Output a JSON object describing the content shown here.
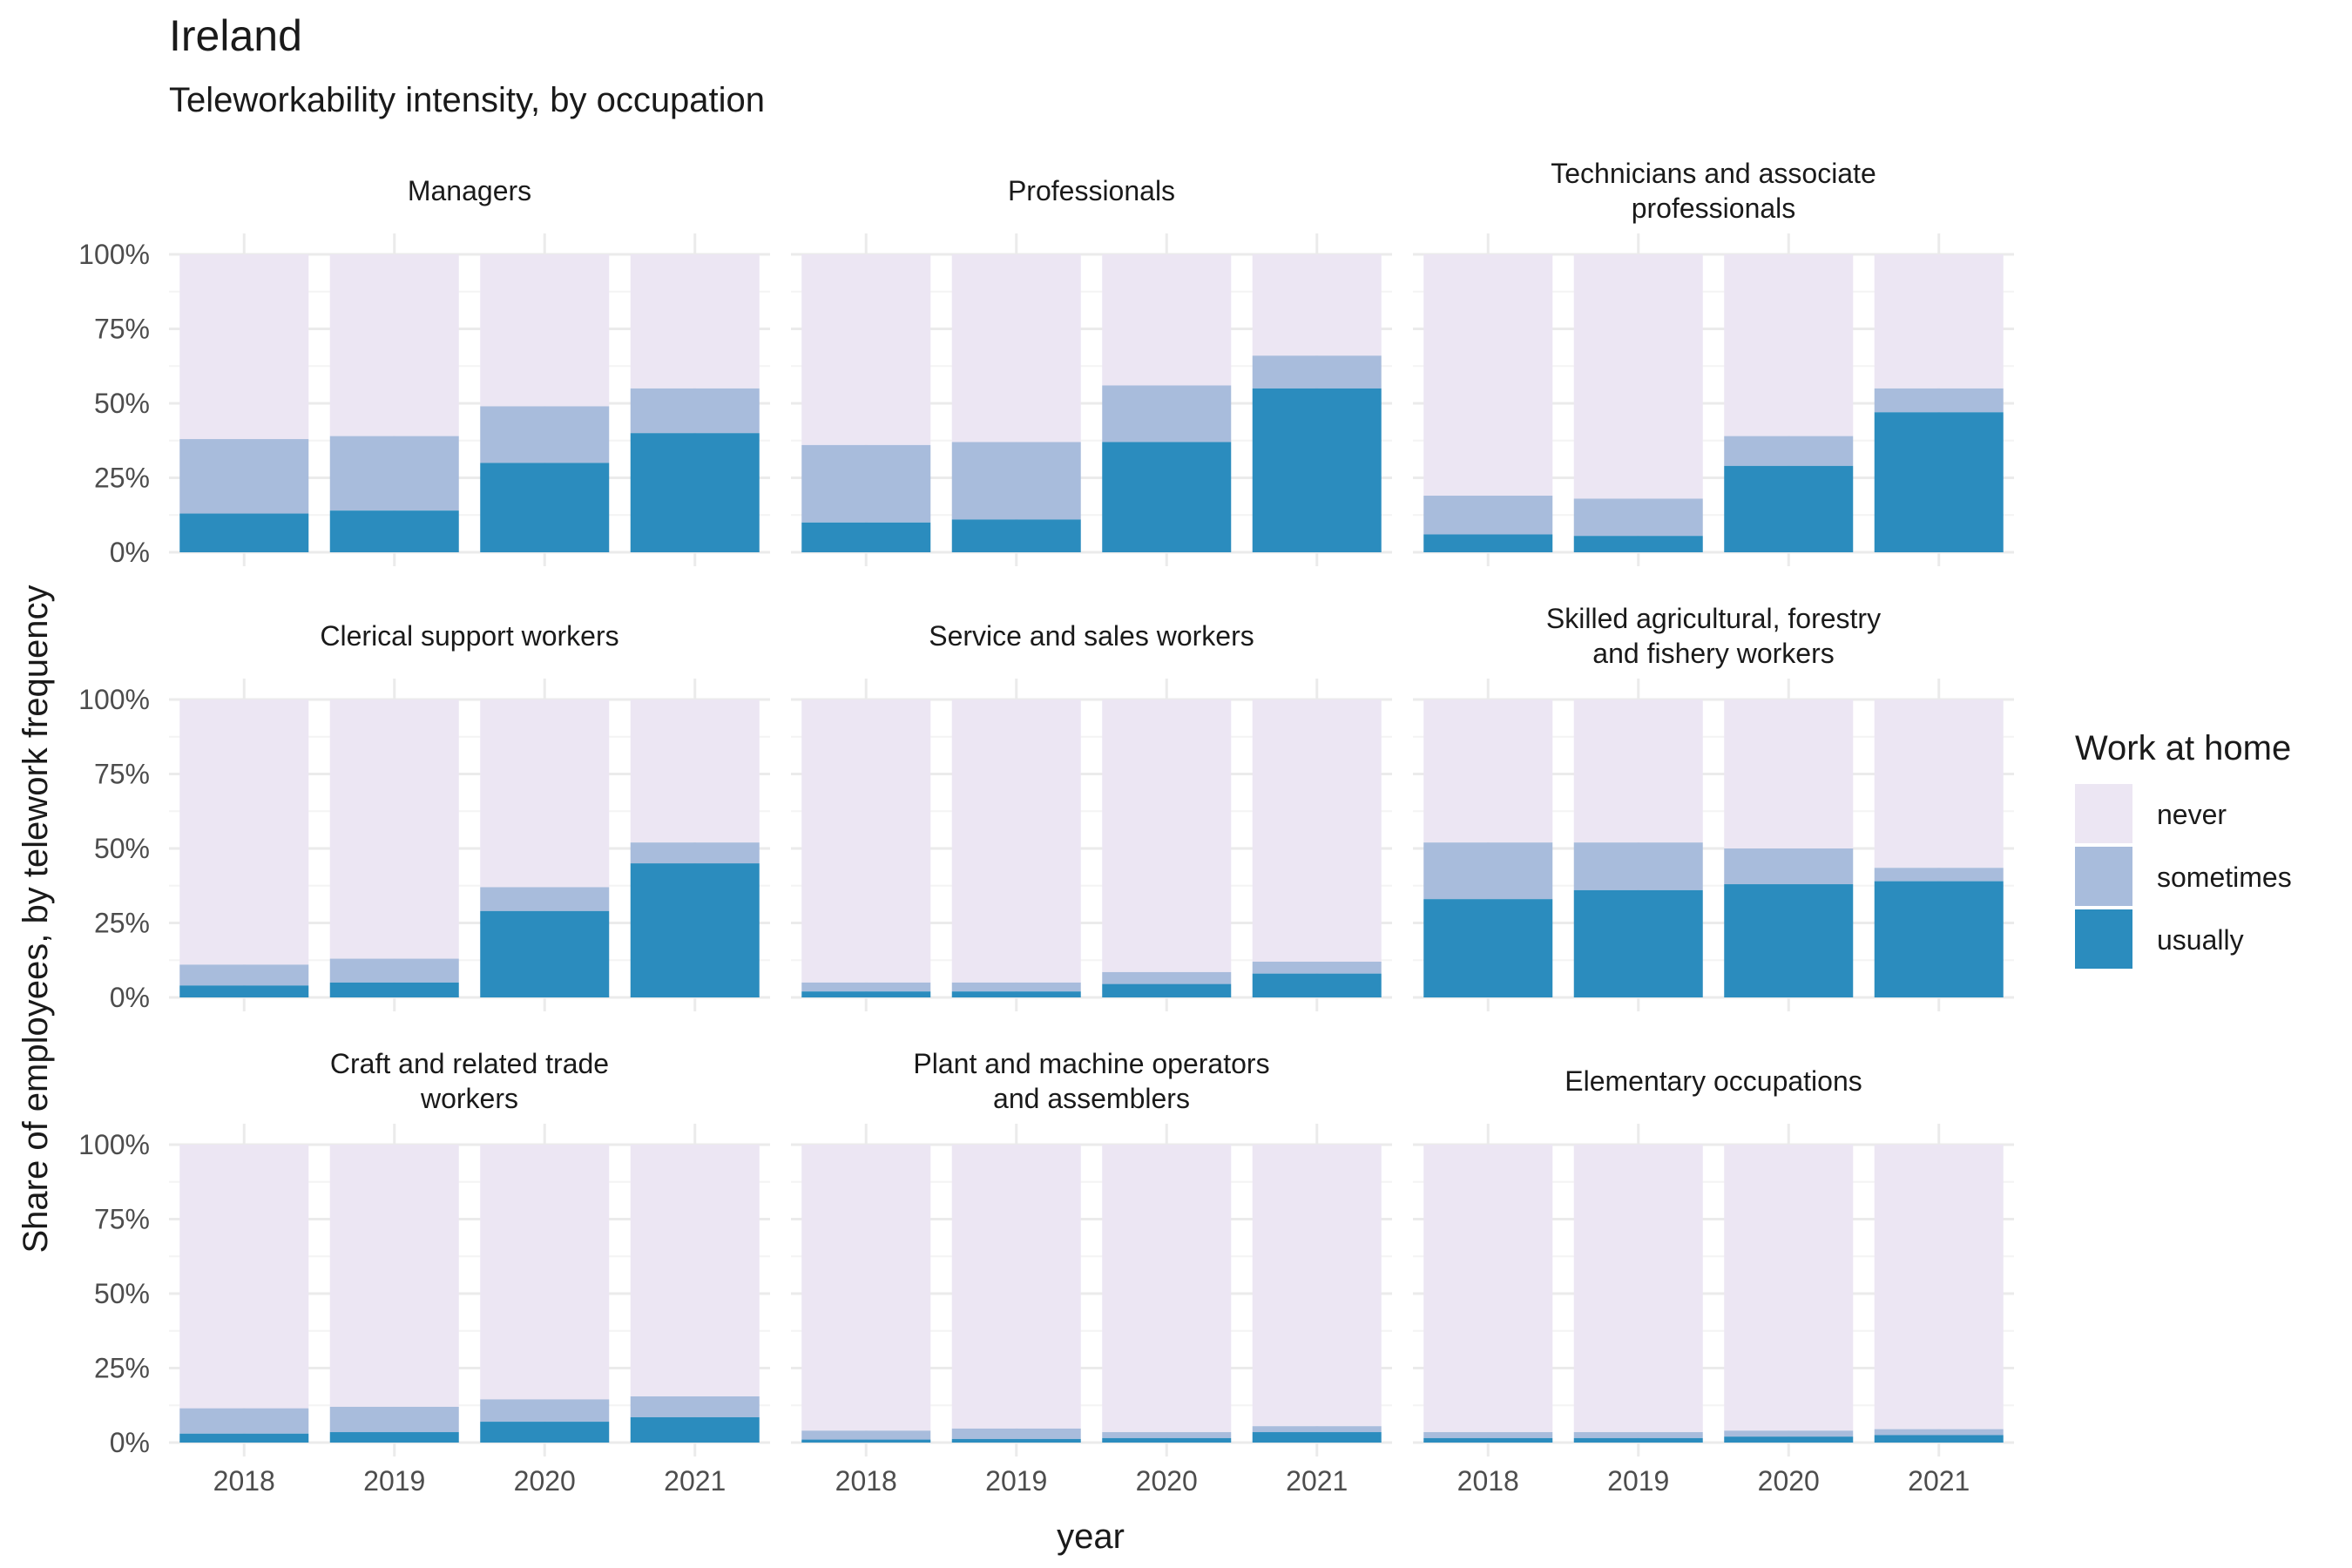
{
  "colors": {
    "never": "#ece6f3",
    "sometimes": "#a8bcdc",
    "usually": "#2b8cbe",
    "grid_major": "#ebebeb",
    "grid_minor": "#f4f4f4",
    "text": "#1a1a1a",
    "tick_text": "#4d4d4d"
  },
  "chart_data": {
    "type": "bar",
    "stacked": true,
    "title": "Ireland",
    "subtitle": "Teleworkability intensity, by occupation",
    "xlabel": "year",
    "ylabel": "Share of employees, by telework frequency",
    "ylim": [
      0,
      1
    ],
    "y_ticks": [
      "0%",
      "25%",
      "50%",
      "75%",
      "100%"
    ],
    "grid": true,
    "legend": {
      "title": "Work at home",
      "position": "right",
      "entries": [
        "never",
        "sometimes",
        "usually"
      ]
    },
    "categories": [
      "2018",
      "2019",
      "2020",
      "2021"
    ],
    "facets": [
      {
        "title": [
          "Managers"
        ],
        "usually": [
          0.13,
          0.14,
          0.3,
          0.4
        ],
        "sometimes": [
          0.25,
          0.25,
          0.19,
          0.15
        ]
      },
      {
        "title": [
          "Professionals"
        ],
        "usually": [
          0.1,
          0.11,
          0.37,
          0.55
        ],
        "sometimes": [
          0.26,
          0.26,
          0.19,
          0.11
        ]
      },
      {
        "title": [
          "Technicians and associate",
          "professionals"
        ],
        "usually": [
          0.06,
          0.055,
          0.29,
          0.47
        ],
        "sometimes": [
          0.13,
          0.125,
          0.1,
          0.08
        ]
      },
      {
        "title": [
          "Clerical support workers"
        ],
        "usually": [
          0.04,
          0.05,
          0.29,
          0.45
        ],
        "sometimes": [
          0.07,
          0.08,
          0.08,
          0.07
        ]
      },
      {
        "title": [
          "Service and sales workers"
        ],
        "usually": [
          0.02,
          0.02,
          0.045,
          0.08
        ],
        "sometimes": [
          0.03,
          0.03,
          0.04,
          0.04
        ]
      },
      {
        "title": [
          "Skilled agricultural, forestry",
          "and fishery workers"
        ],
        "usually": [
          0.33,
          0.36,
          0.38,
          0.39
        ],
        "sometimes": [
          0.19,
          0.16,
          0.12,
          0.045
        ]
      },
      {
        "title": [
          "Craft and related trade",
          "workers"
        ],
        "usually": [
          0.03,
          0.035,
          0.07,
          0.085
        ],
        "sometimes": [
          0.085,
          0.085,
          0.075,
          0.07
        ]
      },
      {
        "title": [
          "Plant and machine operators",
          "and assemblers"
        ],
        "usually": [
          0.01,
          0.012,
          0.015,
          0.035
        ],
        "sometimes": [
          0.03,
          0.035,
          0.02,
          0.02
        ]
      },
      {
        "title": [
          "Elementary occupations"
        ],
        "usually": [
          0.015,
          0.015,
          0.02,
          0.025
        ],
        "sometimes": [
          0.02,
          0.02,
          0.02,
          0.02
        ]
      }
    ]
  }
}
